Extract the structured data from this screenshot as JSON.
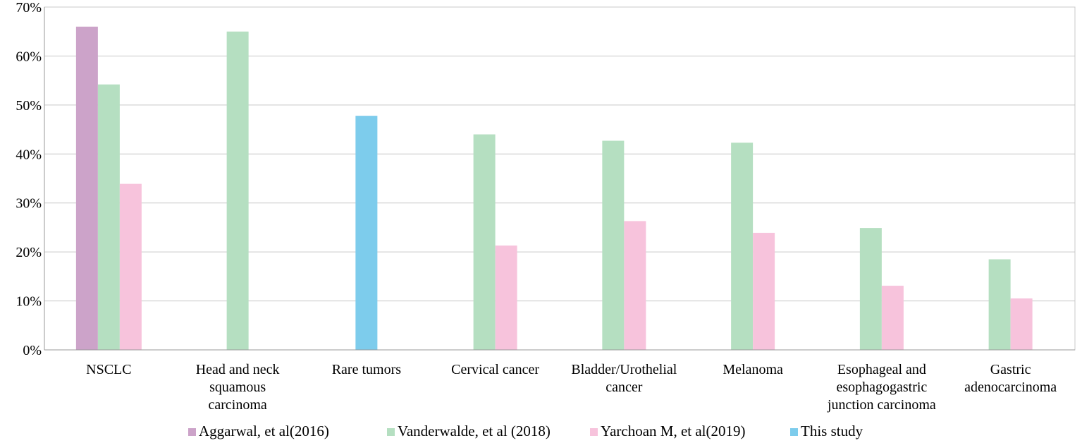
{
  "chart_data": {
    "type": "bar",
    "title": "",
    "xlabel": "",
    "ylabel": "",
    "ylim": [
      0,
      70
    ],
    "yticks": [
      0,
      10,
      20,
      30,
      40,
      50,
      60,
      70
    ],
    "ytick_labels": [
      "0%",
      "10%",
      "20%",
      "30%",
      "40%",
      "50%",
      "60%",
      "70%"
    ],
    "grid": true,
    "legend_position": "bottom",
    "categories": [
      [
        "NSCLC"
      ],
      [
        "Head and neck",
        "squamous",
        "carcinoma"
      ],
      [
        "Rare tumors"
      ],
      [
        "Cervical cancer"
      ],
      [
        "Bladder/Urothelial",
        "cancer"
      ],
      [
        "Melanoma"
      ],
      [
        "Esophageal and",
        "esophagogastric",
        "junction carcinoma"
      ],
      [
        "Gastric",
        "adenocarcinoma"
      ]
    ],
    "series": [
      {
        "name": "Aggarwal, et al(2016)",
        "color": "#cca3c9",
        "values": [
          66,
          null,
          null,
          null,
          null,
          null,
          null,
          null
        ]
      },
      {
        "name": "Vanderwalde, et al (2018)",
        "color": "#b5dfc1",
        "values": [
          54.2,
          65,
          null,
          44,
          42.7,
          42.3,
          24.9,
          18.5
        ]
      },
      {
        "name": "Yarchoan M,  et al(2019)",
        "color": "#f7c3dc",
        "values": [
          33.9,
          null,
          null,
          21.3,
          26.3,
          23.9,
          13.1,
          10.5
        ]
      },
      {
        "name": "This study",
        "color": "#7dccec",
        "values": [
          null,
          null,
          47.8,
          null,
          null,
          null,
          null,
          null
        ]
      }
    ]
  }
}
